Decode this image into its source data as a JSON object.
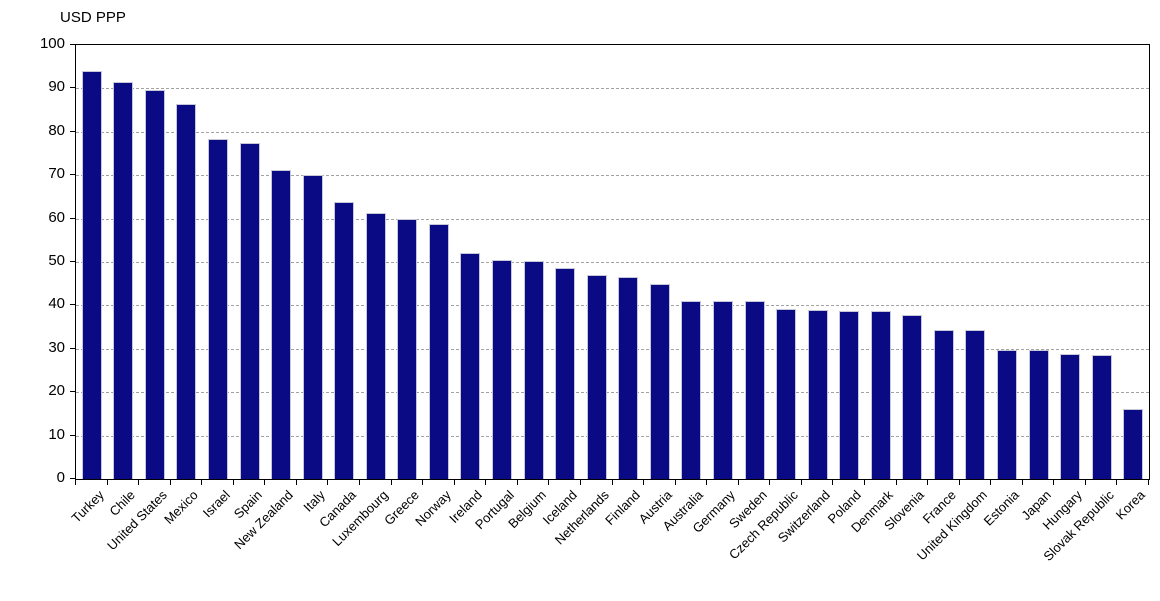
{
  "chart_data": {
    "type": "bar",
    "title": "USD PPP",
    "categories": [
      "Turkey",
      "Chile",
      "United States",
      "Mexico",
      "Israel",
      "Spain",
      "New Zealand",
      "Italy",
      "Canada",
      "Luxembourg",
      "Greece",
      "Norway",
      "Ireland",
      "Portugal",
      "Belgium",
      "Iceland",
      "Netherlands",
      "Finland",
      "Austria",
      "Australia",
      "Germany",
      "Sweden",
      "Czech Republic",
      "Switzerland",
      "Poland",
      "Denmark",
      "Slovenia",
      "France",
      "United Kingdom",
      "Estonia",
      "Japan",
      "Hungary",
      "Slovak Republic",
      "Korea"
    ],
    "values": [
      93.9,
      91.5,
      89.6,
      86.4,
      78.3,
      77.5,
      71.3,
      70.1,
      63.9,
      61.4,
      59.8,
      58.8,
      52.1,
      50.5,
      50.3,
      48.7,
      47.0,
      46.6,
      45.0,
      41.0,
      41.0,
      40.9,
      39.2,
      39.0,
      38.6,
      38.6,
      37.7,
      34.4,
      34.4,
      29.8,
      29.8,
      28.9,
      28.6,
      16.2
    ],
    "xlabel": "",
    "ylabel": "USD PPP",
    "ylim": [
      0,
      100
    ],
    "yticks": [
      0,
      10,
      20,
      30,
      40,
      50,
      60,
      70,
      80,
      90,
      100
    ],
    "grid": "horizontal-dashed",
    "legend": "none",
    "bar_color": "#0a0a85",
    "bar_border_color": "#c7c7da",
    "gridline_color": "#a3a3a3",
    "axis_color": "#000000",
    "background_color": "#ffffff"
  }
}
